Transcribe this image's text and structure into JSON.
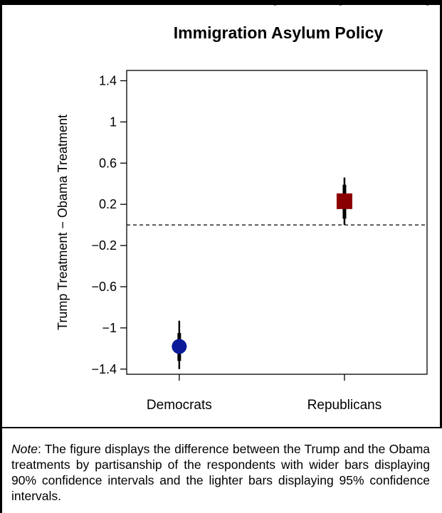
{
  "header_fragment": "y and Republicanship",
  "chart_data": {
    "type": "scatter",
    "title": "Immigration Asylum Policy",
    "ylabel": "Trump Treatment − Obama Treatment",
    "xlabel": "",
    "categories": [
      "Democrats",
      "Republicans"
    ],
    "ylim": [
      -1.45,
      1.5
    ],
    "yticks": [
      1.4,
      1,
      0.6,
      0.2,
      -0.2,
      -0.6,
      -1,
      -1.4
    ],
    "ytick_labels": [
      "1.4",
      "1",
      "0.6",
      "0.2",
      "−0.2",
      "−0.6",
      "−1",
      "−1.4"
    ],
    "reference_line": 0,
    "points": [
      {
        "category": "Democrats",
        "estimate": -1.18,
        "ci90": [
          -1.32,
          -1.05
        ],
        "ci95": [
          -1.4,
          -0.93
        ],
        "marker": "circle",
        "color": "#0a1a99"
      },
      {
        "category": "Republicans",
        "estimate": 0.23,
        "ci90": [
          0.06,
          0.39
        ],
        "ci95": [
          0.0,
          0.46
        ],
        "marker": "square",
        "color": "#8b0000"
      }
    ],
    "grid": false
  },
  "note": {
    "label": "Note",
    "text": ": The figure displays the difference between the Trump and the Obama treatments by partisanship of the respondents with wider bars displaying 90% confidence intervals and the lighter bars displaying 95% confidence intervals."
  }
}
